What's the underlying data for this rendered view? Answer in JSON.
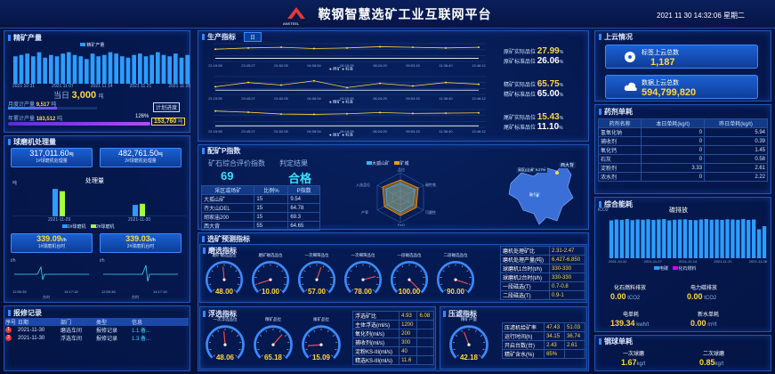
{
  "header": {
    "logo_text": "ANSTEEL",
    "title": "鞍钢智慧选矿工业互联网平台",
    "datetime": "2021 11 30 14:32:06 星期二"
  },
  "concentrate": {
    "title": "精矿产量",
    "legend": "精矿产量",
    "x_labels": [
      "2021 10 31",
      "2021 11 07",
      "2021 11 14",
      "2021 11 21",
      "2021 11 28"
    ],
    "values": [
      2.0,
      2.1,
      2.2,
      2.0,
      2.3,
      1.9,
      2.1,
      2.0,
      2.2,
      2.3,
      2.1,
      2.0,
      1.8,
      2.2,
      2.0,
      2.1,
      2.3,
      2.2,
      2.0,
      1.9,
      2.1,
      2.2,
      2.0,
      2.1,
      2.3,
      2.1,
      2.0,
      2.2,
      1.9,
      2.1
    ],
    "today_label": "当日",
    "today_value": "3,000",
    "today_unit": "吨",
    "monthly_label": "月度计产量",
    "monthly_value": "9,517",
    "monthly_unit": "吨",
    "plan_label": "计划进度",
    "yearly_label": "年累计产量",
    "yearly_value": "183,512",
    "yearly_unit": "吨",
    "yearly_pct": "126%",
    "yearly_pct_num": 1.26,
    "yearly_target": "153,760",
    "yearly_target_unit": "吨"
  },
  "ballmill": {
    "title": "球磨机处理量",
    "m1_value": "317,011.60",
    "m1_unit": "吨",
    "m1_label": "1#球磨机处理量",
    "m2_value": "482,761.50",
    "m2_unit": "吨",
    "m2_label": "2#球磨机处理量",
    "chart_title": "处理量",
    "y_unit": "吨",
    "dates": [
      "2021-11-29",
      "2021-11-30"
    ],
    "m1_bars": [
      24,
      10
    ],
    "m2_bars": [
      22,
      11
    ],
    "legend1": "1#球磨机",
    "legend2": "2#球磨机",
    "m1_rate": "339.09",
    "m1_rate_unit": "t/h",
    "m1_rate_label": "1#球磨机台时",
    "m2_rate": "339.03",
    "m2_rate_unit": "t/h",
    "m2_rate_label": "2#球磨机台时",
    "sparkline_unit": "t/h",
    "sparkline_legend": "台时",
    "spark_times": [
      "12:55:38",
      "14:17:18"
    ]
  },
  "alarms": {
    "title": "报修记录",
    "headers": [
      "序号",
      "日期",
      "部门",
      "类型",
      "信息"
    ],
    "rows": [
      [
        "1",
        "2021-11-30",
        "磨选车间",
        "报修记录",
        "1.1.备..."
      ],
      [
        "2",
        "2021-11-30",
        "浮选车间",
        "报修记录",
        "1.3.备..."
      ]
    ]
  },
  "production": {
    "title": "生产指标",
    "tab": "日",
    "times": [
      "21:19:55",
      "23:45:27",
      "01:52:05",
      "04:08:54",
      "06:19:55",
      "08:24:29",
      "09:53:15",
      "11:36:40",
      "13:46:12"
    ],
    "charts": [
      {
        "legend1": "原矿",
        "legend2": "标准",
        "label1": "原矿实际品位",
        "value1": "27.99",
        "label2": "原矿标准品位",
        "value2": "26.06",
        "unit": "%",
        "series1": [
          27.6,
          27.8,
          27.9,
          27.7,
          27.8,
          28.0,
          27.9,
          27.8,
          27.9
        ],
        "series2": [
          26.1,
          26.1,
          26.1,
          26.1,
          26.1,
          26.1,
          26.1,
          26.1,
          26.1
        ]
      },
      {
        "legend1": "精矿",
        "legend2": "标准",
        "label1": "精矿实际品位",
        "value1": "65.75",
        "label2": "精矿标准品位",
        "value2": "65.00",
        "unit": "%",
        "series1": [
          65.4,
          65.9,
          65.6,
          66.1,
          65.3,
          65.8,
          65.5,
          65.9,
          65.7
        ],
        "series2": [
          65.0,
          65.0,
          65.0,
          65.0,
          65.0,
          65.0,
          65.0,
          65.0,
          65.0
        ]
      },
      {
        "legend1": "尾矿",
        "legend2": "标准",
        "label1": "尾矿实际品位",
        "value1": "15.43",
        "label2": "尾矿标准品位",
        "value2": "11.10",
        "unit": "%",
        "series1": [
          16.0,
          15.6,
          15.0,
          14.9,
          15.1,
          15.5,
          15.2,
          15.3,
          15.4
        ],
        "series2": [
          11.1,
          11.1,
          11.1,
          11.1,
          11.1,
          11.1,
          11.1,
          11.1,
          11.1
        ]
      }
    ]
  },
  "ore": {
    "title": "配矿P指数",
    "index_label": "矿石综合评价指数",
    "index_value": "69",
    "judge_label": "判定结果",
    "judge_value": "合格",
    "table_headers": [
      "采区或场矿",
      "比例%",
      "P指数"
    ],
    "table_rows": [
      [
        "大孤山矿",
        "15",
        "9.54"
      ],
      [
        "齐大山DEL",
        "15",
        "64.78"
      ],
      [
        "胡家庙200",
        "15",
        "69.3"
      ],
      [
        "西大背",
        "55",
        "64.65"
      ]
    ],
    "radar_legend1": "大孤山矿",
    "radar_legend2": "矿城",
    "radar_axes": [
      "品位",
      "磁性铁",
      "可磨性",
      "FeO",
      "产率",
      "入选品位"
    ],
    "map_label1": "西大背",
    "map_label2": "采区(山)矿 9.27%",
    "map_label3": "鞍千矿"
  },
  "forecast": {
    "title": "选矿预测指标",
    "grinding_title": "磨选指标",
    "gauges": [
      {
        "label": "磨矿磁选品位",
        "value": "48.00"
      },
      {
        "label": "磨矿磁选品位",
        "value": "10.00"
      },
      {
        "label": "一次细筛品位",
        "value": "57.00"
      },
      {
        "label": "一次细筛品位",
        "value": "78.00"
      },
      {
        "label": "一段磁选品位",
        "value": "100.00"
      },
      {
        "label": "二段磁选品位",
        "value": "90.00"
      }
    ],
    "grind_table": [
      [
        "磨机处理矿比",
        "2.31-2.47"
      ],
      [
        "磨机处理产量(吨)",
        "6,427-6,850"
      ],
      [
        "球磨机1台时(t/h)",
        "330-330"
      ],
      [
        "球磨机2台时(t/h)",
        "330-330"
      ],
      [
        "一段磁选(T)",
        "0.7-0.8"
      ],
      [
        "二段磁选(T)",
        "0.9-1"
      ]
    ],
    "flotation_title": "浮选指标",
    "flot_gauges": [
      {
        "label": "一次浮选品位",
        "value": "48.06"
      },
      {
        "label": "精矿品位",
        "value": "65.18"
      },
      {
        "label": "尾矿品位",
        "value": "15.09"
      }
    ],
    "flot_table": [
      [
        "浮选矿比",
        "4.93",
        "6.08"
      ],
      [
        "主体浮选(ml/s)",
        "1200",
        ""
      ],
      [
        "氧化剂(ml/s)",
        "200",
        ""
      ],
      [
        "捕收剂(ml/s)",
        "300",
        ""
      ],
      [
        "淀粉KS-III(ml/s)",
        "40",
        ""
      ],
      [
        "精选KS-III(ml/s)",
        "11.6",
        ""
      ]
    ],
    "filter_title": "压滤指标",
    "filter_gauge": {
      "label": "精矿产量",
      "value": "42.18"
    },
    "filter_table": [
      [
        "压滤机给矿率",
        "47.43",
        "51.03"
      ],
      [
        "运行时间(h)",
        "34.15",
        "36.74"
      ],
      [
        "开启台数(台)",
        "2.43",
        "2.61"
      ],
      [
        "精矿含水(%)",
        "65%",
        ""
      ]
    ]
  },
  "upload": {
    "title": "上云情况",
    "label1": "标签上云总数",
    "value1": "1,187",
    "label2": "数据上云总数",
    "value2": "594,799,820"
  },
  "reagent": {
    "title": "药剂单耗",
    "headers": [
      "药剂名称",
      "本日单耗(kg/t)",
      "昨日单耗(kg/t)"
    ],
    "rows": [
      [
        "氢氧化钠",
        "0",
        "5.94"
      ],
      [
        "捕收剂",
        "0",
        "0.39"
      ],
      [
        "氧化钙",
        "0",
        "1.45"
      ],
      [
        "石灰",
        "0",
        "0.58"
      ],
      [
        "淀粉剂",
        "3.33",
        "2.61"
      ],
      [
        "浓水剂",
        "0",
        "2.22"
      ]
    ]
  },
  "energy": {
    "title": "综合能耗",
    "chart_title": "碳排放",
    "unit": "tCO2",
    "x_labels": [
      "2021-10-31",
      "2021-11-07",
      "2021-11-14",
      "2021-11-21",
      "2021-11-28"
    ],
    "values": [
      850,
      870,
      860,
      880,
      855,
      870,
      865,
      875,
      860,
      870,
      880,
      850,
      865,
      870,
      875,
      860,
      855,
      870,
      880,
      865,
      870,
      860,
      875,
      870,
      865,
      880,
      860,
      870,
      650,
      720
    ],
    "legend1": "电碳",
    "legend2": "化石燃料",
    "fossil_label": "化石燃料排放",
    "fossil_value": "0.00",
    "fossil_unit": "tCO2",
    "elec_label": "电力碳排放",
    "elec_value": "0.00",
    "elec_unit": "tCO2",
    "power_label": "电单耗",
    "power_value": "139.34",
    "power_unit": "kwh/t",
    "water_label": "新水单耗",
    "water_value": "0.00",
    "water_unit": "m³/t"
  },
  "steelball": {
    "title": "钢球单耗",
    "b1_label": "一次球磨",
    "b1_value": "1.67",
    "b1_unit": "kg/t",
    "b2_label": "二次球磨",
    "b2_value": "0.85",
    "b2_unit": "kg/t"
  },
  "colors": {
    "accent": "#2e8bff",
    "yellow": "#ffd740",
    "cyan": "#36e0ff",
    "bar": "#2d9cff",
    "panel_border": "#1e55b8"
  }
}
